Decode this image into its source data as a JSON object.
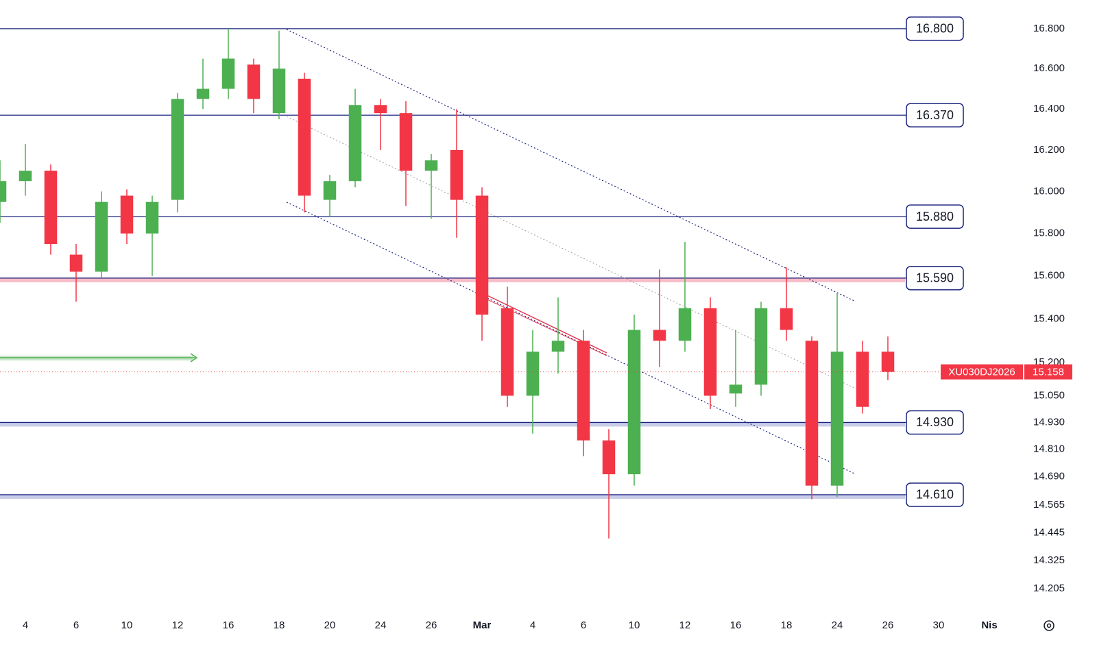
{
  "chart_data": {
    "type": "candlestick",
    "symbol": "XU030DJ2026",
    "last_price": {
      "value": 15158,
      "label": "15.158"
    },
    "categories": [
      null,
      "4",
      null,
      "6",
      null,
      "10",
      null,
      "12",
      null,
      "16",
      null,
      "18",
      null,
      "20",
      null,
      "24",
      null,
      "26",
      null,
      "Mar",
      null,
      "4",
      null,
      "6",
      null,
      "10",
      null,
      "12",
      null,
      "16",
      null,
      "18",
      null,
      "24",
      null,
      "26",
      null,
      "30",
      null,
      "Nis"
    ],
    "ohlc": {
      "open": [
        15950,
        16050,
        16100,
        15700,
        15620,
        15980,
        15800,
        15960,
        16450,
        16500,
        16620,
        16380,
        16550,
        15960,
        16050,
        16420,
        16380,
        16100,
        16200,
        15980,
        15450,
        15050,
        15250,
        15300,
        14850,
        14700,
        15350,
        15300,
        15450,
        15060,
        15100,
        15450,
        15300,
        14650,
        15250,
        15250,
        null,
        null,
        null,
        null
      ],
      "high": [
        16150,
        16230,
        16130,
        15750,
        16000,
        16010,
        15980,
        16480,
        16650,
        16800,
        16650,
        16790,
        16580,
        16080,
        16500,
        16450,
        16440,
        16180,
        16400,
        16020,
        15550,
        15350,
        15500,
        15350,
        14900,
        15420,
        15630,
        15760,
        15500,
        15350,
        15480,
        15640,
        15320,
        15520,
        15300,
        15320,
        null,
        null,
        null,
        null
      ],
      "low": [
        15850,
        15980,
        15700,
        15480,
        15590,
        15750,
        15600,
        15900,
        16400,
        16450,
        16380,
        16350,
        15900,
        15880,
        16020,
        16200,
        15930,
        15870,
        15780,
        15300,
        15000,
        14880,
        15150,
        14780,
        14420,
        14650,
        15180,
        15250,
        14990,
        15000,
        15050,
        15300,
        14590,
        14600,
        14970,
        15120,
        null,
        null,
        null,
        null
      ],
      "close": [
        16050,
        16100,
        15750,
        15620,
        15950,
        15800,
        15950,
        16450,
        16500,
        16650,
        16450,
        16600,
        15980,
        16050,
        16420,
        16380,
        16100,
        16150,
        15960,
        15420,
        15050,
        15250,
        15300,
        14850,
        14700,
        15350,
        15300,
        15450,
        15050,
        15100,
        15450,
        15350,
        14650,
        15250,
        15000,
        15158,
        null,
        null,
        null,
        null
      ]
    },
    "up_color": "#4caf50",
    "down_color": "#f23645",
    "levels": [
      {
        "value": 16800,
        "label": "16.800"
      },
      {
        "value": 16370,
        "label": "16.370"
      },
      {
        "value": 15880,
        "label": "15.880"
      },
      {
        "value": 15590,
        "label": "15.590",
        "band": "#f8bcc8"
      },
      {
        "value": 14930,
        "label": "14.930",
        "band": "#c9cdea"
      },
      {
        "value": 14610,
        "label": "14.610",
        "band": "#c9cdea"
      }
    ],
    "level_color": "#1a237e",
    "ylim": [
      14100,
      16945
    ],
    "log_scale": true,
    "grid": false,
    "yticks": [
      {
        "value": 16800,
        "label": "16.800"
      },
      {
        "value": 16600,
        "label": "16.600"
      },
      {
        "value": 16400,
        "label": "16.400"
      },
      {
        "value": 16200,
        "label": "16.200"
      },
      {
        "value": 16000,
        "label": "16.000"
      },
      {
        "value": 15800,
        "label": "15.800"
      },
      {
        "value": 15600,
        "label": "15.600"
      },
      {
        "value": 15400,
        "label": "15.400"
      },
      {
        "value": 15200,
        "label": "15.200"
      },
      {
        "value": 15050,
        "label": "15.050"
      },
      {
        "value": 14930,
        "label": "14.930"
      },
      {
        "value": 14810,
        "label": "14.810"
      },
      {
        "value": 14690,
        "label": "14.690"
      },
      {
        "value": 14565,
        "label": "14.565"
      },
      {
        "value": 14445,
        "label": "14.445"
      },
      {
        "value": 14325,
        "label": "14.325"
      },
      {
        "value": 14205,
        "label": "14.205"
      }
    ]
  }
}
